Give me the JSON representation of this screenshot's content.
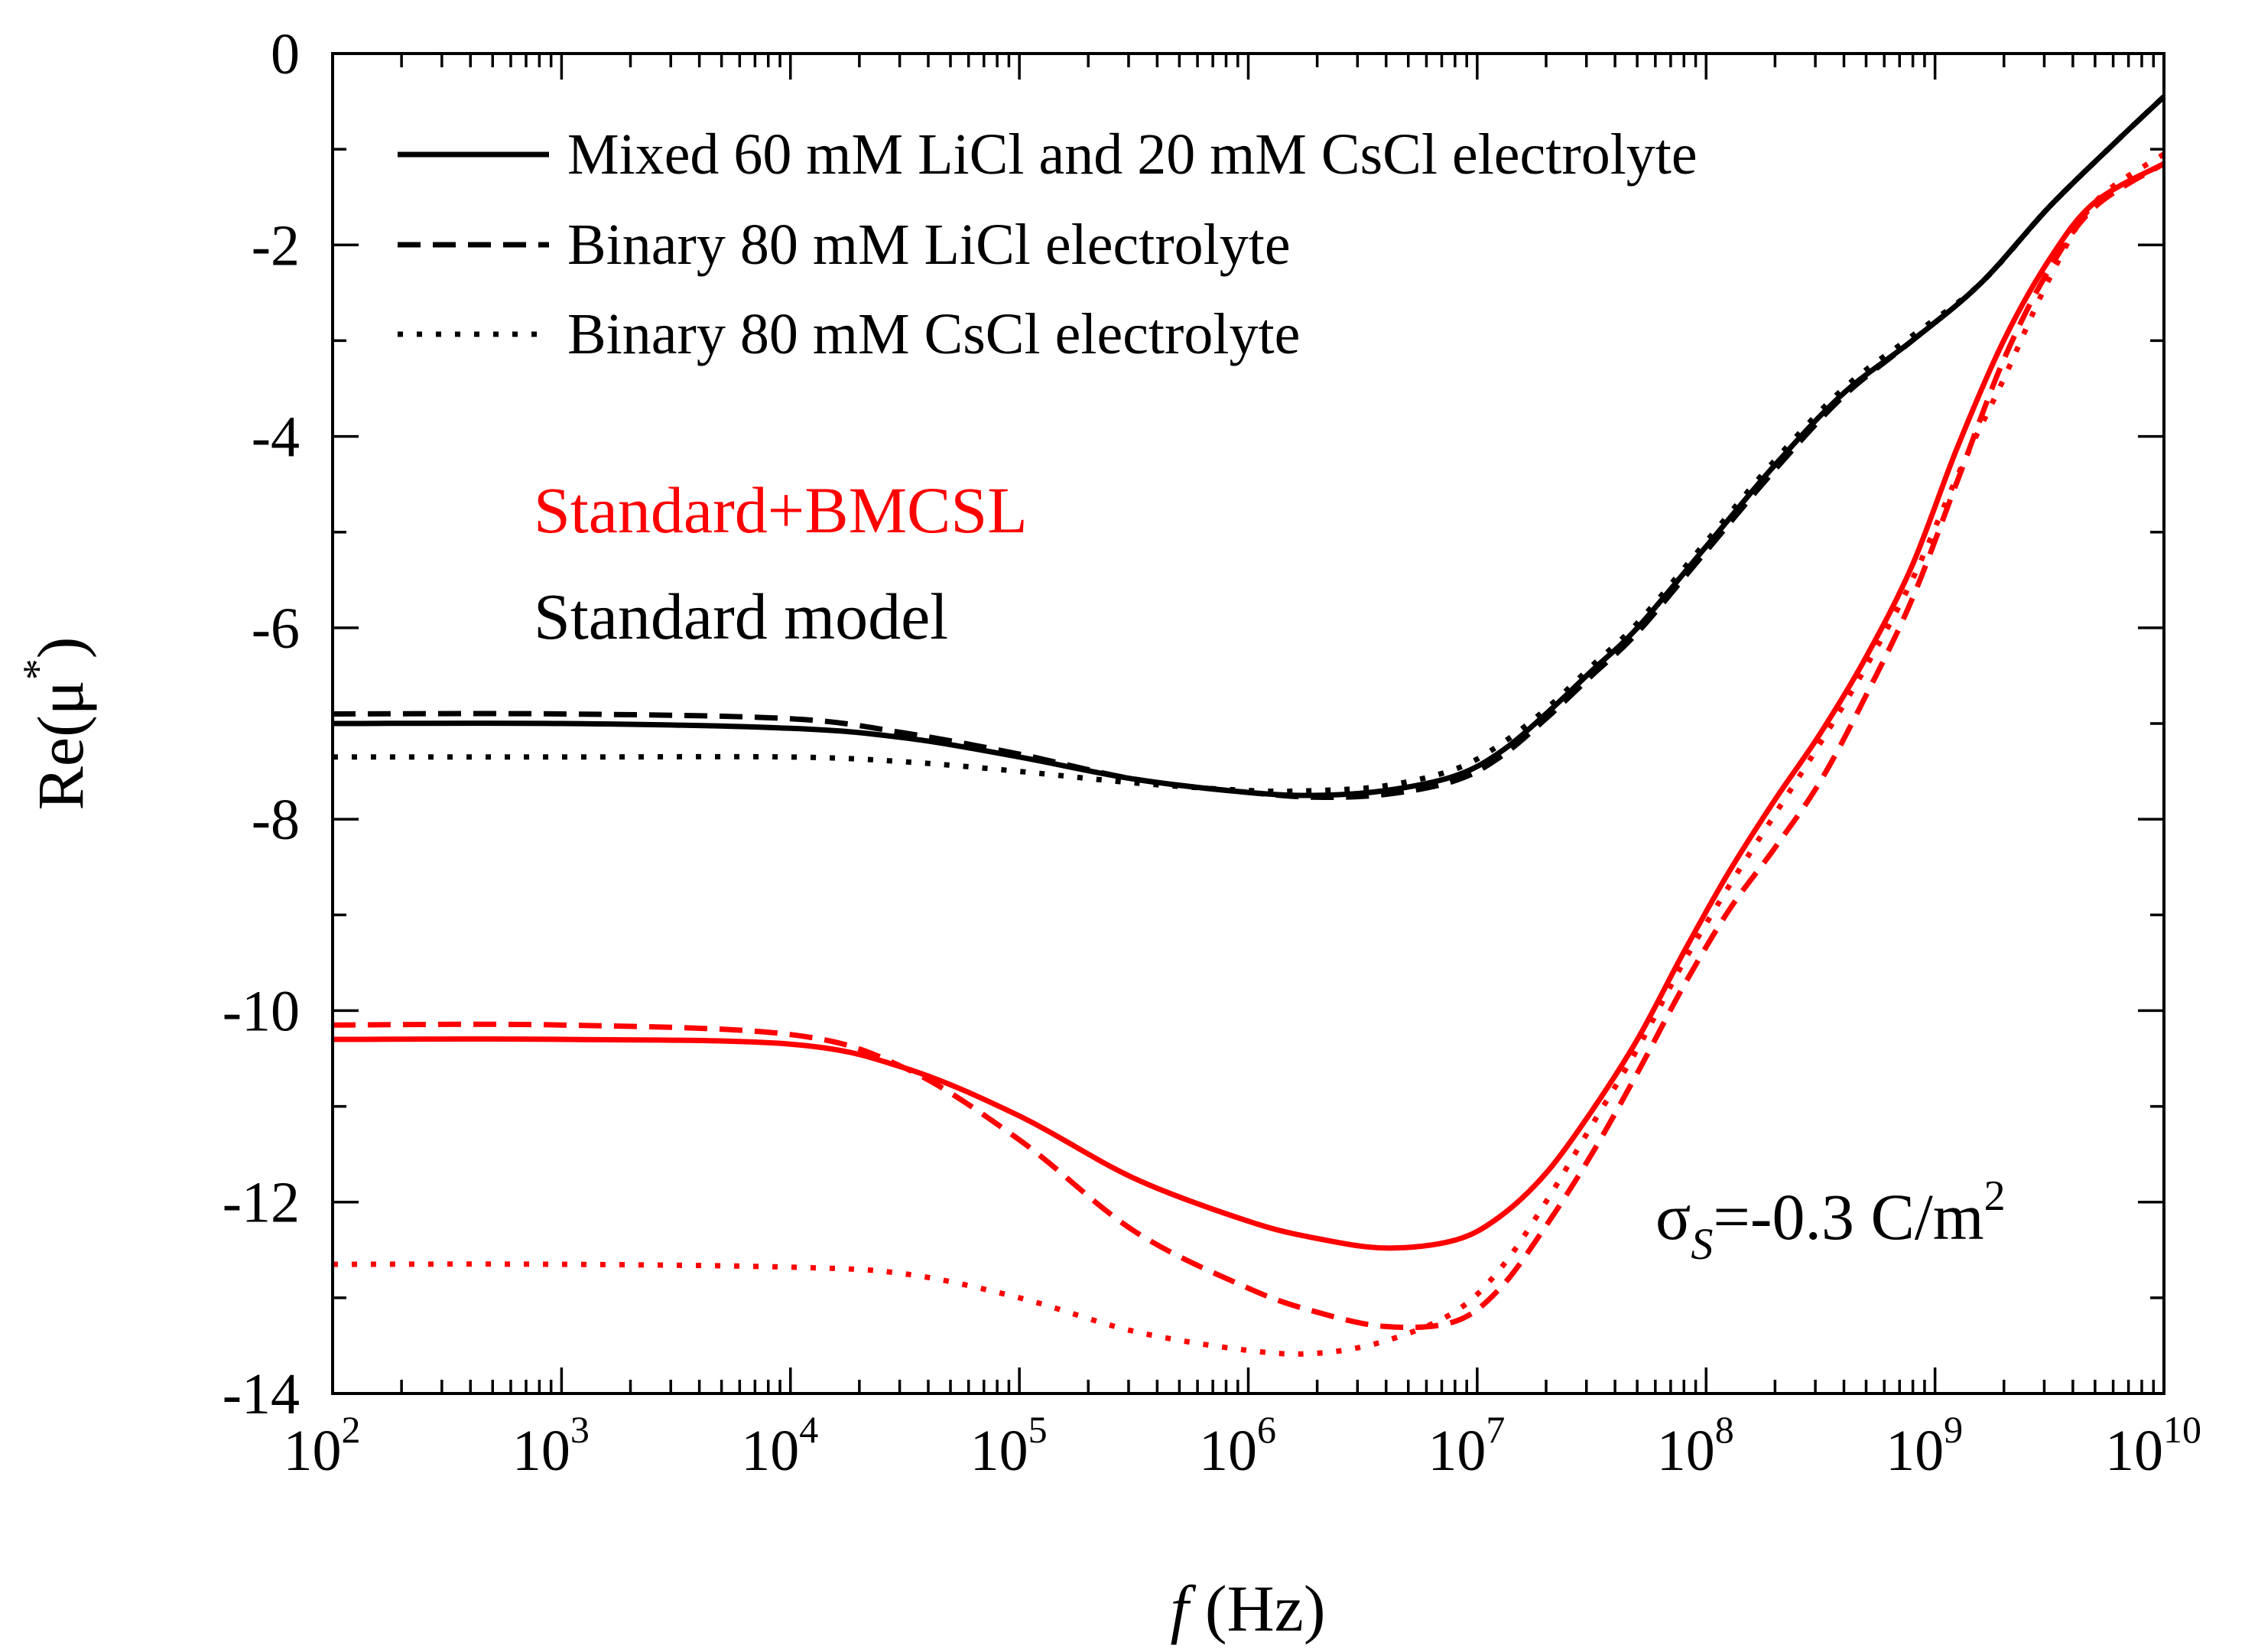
{
  "chart_data": {
    "type": "line",
    "title": "",
    "xlabel": {
      "var": "f",
      "unit": "(Hz)"
    },
    "ylabel": {
      "base": "Re(μ",
      "sup": "*",
      "close": ")"
    },
    "xscale": "log",
    "xlim": [
      100,
      10000000000
    ],
    "ylim": [
      -14,
      0
    ],
    "x_ticks": [
      {
        "base": "10",
        "exp": "2"
      },
      {
        "base": "10",
        "exp": "3"
      },
      {
        "base": "10",
        "exp": "4"
      },
      {
        "base": "10",
        "exp": "5"
      },
      {
        "base": "10",
        "exp": "6"
      },
      {
        "base": "10",
        "exp": "7"
      },
      {
        "base": "10",
        "exp": "8"
      },
      {
        "base": "10",
        "exp": "9"
      },
      {
        "base": "10",
        "exp": "10"
      }
    ],
    "y_ticks": [
      "0",
      "-2",
      "-4",
      "-6",
      "-8",
      "-10",
      "-12",
      "-14"
    ],
    "legend": {
      "position": "top-left",
      "entries": [
        {
          "label": "Mixed 60 mM LiCl and 20 mM CsCl electrolyte",
          "style": "solid"
        },
        {
          "label": "Binary 80 mM LiCl electrolyte",
          "style": "dashed"
        },
        {
          "label": "Binary 80 mM CsCl electrolyte",
          "style": "dotted"
        }
      ]
    },
    "annotations": {
      "model_red": "Standard+BMCSL",
      "model_black": "Standard model",
      "sigma": {
        "symbol": "σ",
        "sub": "S",
        "text": "=-0.3 C/m",
        "sup": "2"
      }
    },
    "colors": {
      "red": "#ff0000",
      "black": "#000000"
    },
    "series": [
      {
        "name": "Standard model – Mixed 60 mM LiCl and 20 mM CsCl electrolyte",
        "model": "Standard model",
        "color": "#000000",
        "style": "solid",
        "log10_f": [
          2,
          3,
          4,
          4.5,
          5,
          5.5,
          6,
          6.3,
          6.6,
          6.9,
          7.1,
          7.3,
          7.5,
          7.7,
          8.0,
          8.3,
          8.6,
          8.9,
          9.2,
          9.5,
          9.8,
          10
        ],
        "values": [
          -7.0,
          -7.0,
          -7.05,
          -7.15,
          -7.35,
          -7.58,
          -7.72,
          -7.75,
          -7.7,
          -7.55,
          -7.3,
          -6.9,
          -6.45,
          -6.0,
          -5.15,
          -4.3,
          -3.55,
          -3.0,
          -2.4,
          -1.6,
          -0.9,
          -0.45
        ]
      },
      {
        "name": "Standard model – Binary 80 mM LiCl electrolyte",
        "model": "Standard model",
        "color": "#000000",
        "style": "dashed",
        "log10_f": [
          2,
          3,
          4,
          4.5,
          5,
          5.5,
          6,
          6.3,
          6.6,
          6.9,
          7.1,
          7.3,
          7.5,
          7.7,
          8.0,
          8.3,
          8.6,
          8.9,
          9.2,
          9.5,
          9.8,
          10
        ],
        "values": [
          -6.9,
          -6.9,
          -6.95,
          -7.1,
          -7.32,
          -7.58,
          -7.72,
          -7.77,
          -7.74,
          -7.6,
          -7.35,
          -6.95,
          -6.5,
          -6.05,
          -5.2,
          -4.35,
          -3.58,
          -3.0,
          -2.4,
          -1.6,
          -0.9,
          -0.45
        ]
      },
      {
        "name": "Standard model – Binary 80 mM CsCl electrolyte",
        "model": "Standard model",
        "color": "#000000",
        "style": "dotted",
        "log10_f": [
          2,
          3,
          4,
          4.5,
          5,
          5.5,
          6,
          6.3,
          6.6,
          6.9,
          7.1,
          7.3,
          7.5,
          7.7,
          8.0,
          8.3,
          8.6,
          8.9,
          9.2,
          9.5,
          9.8,
          10
        ],
        "values": [
          -7.35,
          -7.35,
          -7.35,
          -7.4,
          -7.5,
          -7.62,
          -7.7,
          -7.7,
          -7.65,
          -7.48,
          -7.22,
          -6.85,
          -6.4,
          -5.95,
          -5.1,
          -4.25,
          -3.5,
          -2.95,
          -2.4,
          -1.6,
          -0.9,
          -0.45
        ]
      },
      {
        "name": "Standard+BMCSL – Mixed 60 mM LiCl and 20 mM CsCl electrolyte",
        "model": "Standard+BMCSL",
        "color": "#ff0000",
        "style": "solid",
        "log10_f": [
          2,
          3,
          4,
          4.5,
          5,
          5.5,
          6,
          6.3,
          6.6,
          6.9,
          7.1,
          7.3,
          7.5,
          7.7,
          7.9,
          8.1,
          8.3,
          8.5,
          8.7,
          8.9,
          9.1,
          9.3,
          9.5,
          9.7,
          10
        ],
        "values": [
          -10.3,
          -10.3,
          -10.35,
          -10.6,
          -11.1,
          -11.75,
          -12.2,
          -12.38,
          -12.48,
          -12.4,
          -12.15,
          -11.7,
          -11.05,
          -10.3,
          -9.4,
          -8.55,
          -7.8,
          -7.1,
          -6.3,
          -5.35,
          -4.1,
          -3.0,
          -2.15,
          -1.55,
          -1.15
        ]
      },
      {
        "name": "Standard+BMCSL – Binary 80 mM LiCl electrolyte",
        "model": "Standard+BMCSL",
        "color": "#ff0000",
        "style": "dashed",
        "log10_f": [
          2,
          3,
          4,
          4.5,
          5,
          5.5,
          6,
          6.3,
          6.6,
          6.9,
          7.1,
          7.3,
          7.5,
          7.7,
          7.9,
          8.1,
          8.3,
          8.5,
          8.7,
          8.9,
          9.1,
          9.3,
          9.5,
          9.7,
          10
        ],
        "values": [
          -10.15,
          -10.15,
          -10.25,
          -10.6,
          -11.35,
          -12.3,
          -12.9,
          -13.15,
          -13.3,
          -13.25,
          -12.9,
          -12.25,
          -11.5,
          -10.65,
          -9.75,
          -8.95,
          -8.3,
          -7.6,
          -6.7,
          -5.7,
          -4.45,
          -3.2,
          -2.25,
          -1.6,
          -1.15
        ]
      },
      {
        "name": "Standard+BMCSL – Binary 80 mM CsCl electrolyte",
        "model": "Standard+BMCSL",
        "color": "#ff0000",
        "style": "dotted",
        "log10_f": [
          2,
          3,
          4,
          4.5,
          5,
          5.5,
          6,
          6.3,
          6.6,
          6.9,
          7.1,
          7.3,
          7.5,
          7.7,
          7.9,
          8.1,
          8.3,
          8.5,
          8.7,
          8.9,
          9.1,
          9.3,
          9.5,
          9.7,
          10
        ],
        "values": [
          -12.65,
          -12.65,
          -12.68,
          -12.75,
          -13.0,
          -13.35,
          -13.55,
          -13.58,
          -13.45,
          -13.15,
          -12.7,
          -12.0,
          -11.2,
          -10.4,
          -9.5,
          -8.7,
          -7.95,
          -7.2,
          -6.4,
          -5.5,
          -4.4,
          -3.4,
          -2.35,
          -1.55,
          -1.05
        ]
      }
    ]
  }
}
